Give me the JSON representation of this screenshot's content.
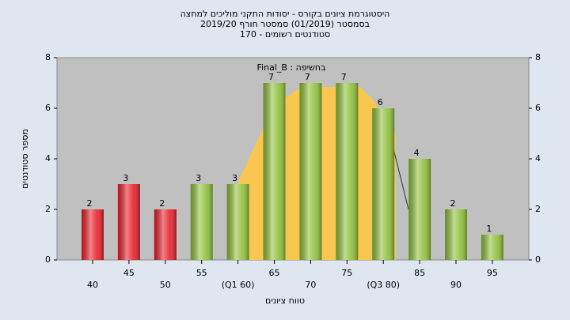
{
  "chart_data": {
    "type": "bar",
    "title": [
      "היסטוגרמת ציונים בקורס - יסודות התקני מוליכים למחצה",
      "בסמסטר  (01/2019)  סמסטר חורף 2019/20",
      "סטודנטים רשומים - 170"
    ],
    "annotation": "בחשיפה : Final_B",
    "x_label": "טווח ציונים",
    "y_label": "מספר סטודנטים",
    "categories": [
      "40",
      "45",
      "50",
      "55",
      "(Q1 60)",
      "65",
      "70",
      "75",
      "(Q3 80)",
      "85",
      "90",
      "95"
    ],
    "values": [
      2,
      3,
      2,
      3,
      3,
      7,
      7,
      7,
      6,
      4,
      2,
      1
    ],
    "colors": [
      "#e8202a",
      "#e8202a",
      "#e8202a",
      "#8fc03a",
      "#8fc03a",
      "#8fc03a",
      "#8fc03a",
      "#8fc03a",
      "#8fc03a",
      "#8fc03a",
      "#8fc03a",
      "#8fc03a"
    ],
    "ylim": [
      0,
      8
    ],
    "yticks": [
      0,
      2,
      4,
      6,
      8
    ],
    "y2lim": [
      0,
      8
    ],
    "y2ticks": [
      0,
      2,
      4,
      6,
      8
    ]
  }
}
